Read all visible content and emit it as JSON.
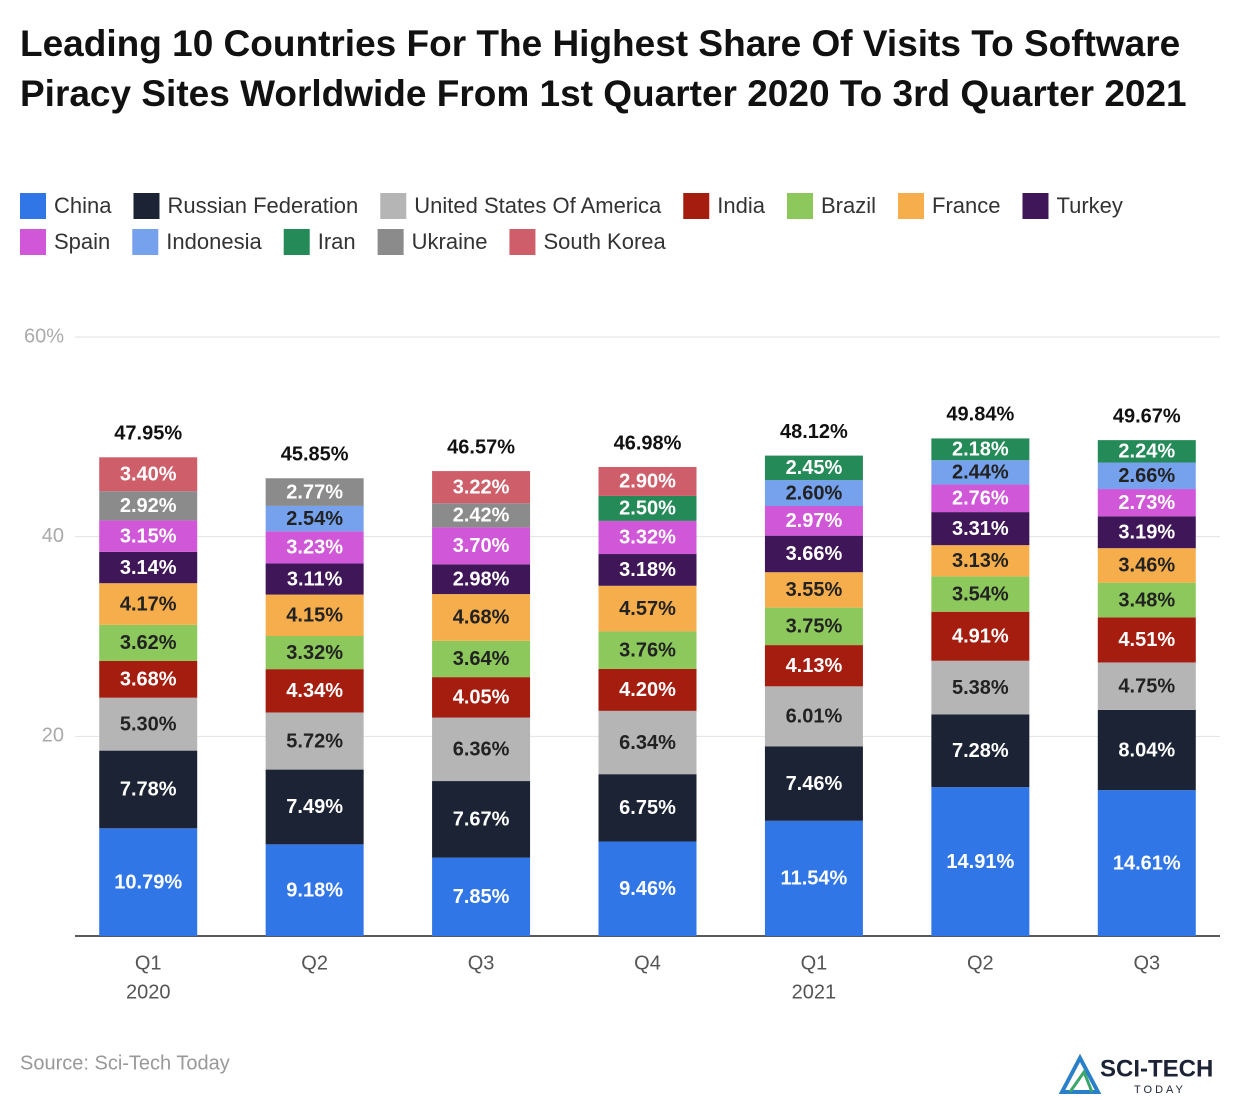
{
  "chart_data": {
    "type": "stacked_bar",
    "title": "Leading 10 Countries For The Highest Share Of Visits To Software Piracy Sites Worldwide From 1st Quarter 2020 To 3rd Quarter 2021",
    "categories": [
      [
        "Q1",
        "2020"
      ],
      [
        "Q2"
      ],
      [
        "Q3"
      ],
      [
        "Q4"
      ],
      [
        "Q1",
        "2021"
      ],
      [
        "Q2"
      ],
      [
        "Q3"
      ]
    ],
    "series": [
      {
        "name": "China",
        "color": "#3176e6",
        "values": [
          10.79,
          9.18,
          7.85,
          9.46,
          11.54,
          14.91,
          14.61
        ],
        "value_labels": [
          "10.79%",
          "9.18%",
          "7.85%",
          "9.46%",
          "11.54%",
          "14.91%",
          "14.61%"
        ]
      },
      {
        "name": "Russian Federation",
        "color": "#1b2335",
        "values": [
          7.78,
          7.49,
          7.67,
          6.75,
          7.46,
          7.28,
          8.04
        ],
        "value_labels": [
          "7.78%",
          "7.49%",
          "7.67%",
          "6.75%",
          "7.46%",
          "7.28%",
          "8.04%"
        ]
      },
      {
        "name": "United States Of America",
        "color": "#b5b5b5",
        "values": [
          5.3,
          5.72,
          6.36,
          6.34,
          6.01,
          5.38,
          4.75
        ],
        "value_labels": [
          "5.30%",
          "5.72%",
          "6.36%",
          "6.34%",
          "6.01%",
          "5.38%",
          "4.75%"
        ]
      },
      {
        "name": "India",
        "color": "#a51d0e",
        "values": [
          3.68,
          4.34,
          4.05,
          4.2,
          4.13,
          4.91,
          4.51
        ],
        "value_labels": [
          "3.68%",
          "4.34%",
          "4.05%",
          "4.20%",
          "4.13%",
          "4.91%",
          "4.51%"
        ]
      },
      {
        "name": "Brazil",
        "color": "#8cc85b",
        "values": [
          3.62,
          3.32,
          3.64,
          3.76,
          3.75,
          3.54,
          3.48
        ],
        "value_labels": [
          "3.62%",
          "3.32%",
          "3.64%",
          "3.76%",
          "3.75%",
          "3.54%",
          "3.48%"
        ]
      },
      {
        "name": "France",
        "color": "#f6ad4b",
        "values": [
          4.17,
          4.15,
          4.68,
          4.57,
          3.55,
          3.13,
          3.46
        ],
        "value_labels": [
          "4.17%",
          "4.15%",
          "4.68%",
          "4.57%",
          "3.55%",
          "3.13%",
          "3.46%"
        ]
      },
      {
        "name": "Turkey",
        "color": "#3f1657",
        "values": [
          3.14,
          3.11,
          2.98,
          3.18,
          3.66,
          3.31,
          3.19
        ],
        "value_labels": [
          "3.14%",
          "3.11%",
          "2.98%",
          "3.18%",
          "3.66%",
          "3.31%",
          "3.19%"
        ]
      },
      {
        "name": "Spain",
        "color": "#d057d8",
        "values": [
          3.15,
          3.23,
          3.7,
          3.32,
          2.97,
          2.76,
          2.73
        ],
        "value_labels": [
          "3.15%",
          "3.23%",
          "3.70%",
          "3.32%",
          "2.97%",
          "2.76%",
          "2.73%"
        ]
      },
      {
        "name": "Indonesia",
        "color": "#76a1ec",
        "values": [
          null,
          2.54,
          null,
          null,
          2.6,
          2.44,
          2.66
        ],
        "value_labels": [
          null,
          "2.54%",
          null,
          null,
          "2.60%",
          "2.44%",
          "2.66%"
        ]
      },
      {
        "name": "Iran",
        "color": "#248a57",
        "values": [
          null,
          null,
          null,
          2.5,
          2.45,
          2.18,
          2.24
        ],
        "value_labels": [
          null,
          null,
          null,
          "2.50%",
          "2.45%",
          "2.18%",
          "2.24%"
        ]
      },
      {
        "name": "Ukraine",
        "color": "#8b8b8b",
        "values": [
          2.92,
          2.77,
          2.42,
          null,
          null,
          null,
          null
        ],
        "value_labels": [
          "2.92%",
          "2.77%",
          "2.42%",
          null,
          null,
          null,
          null
        ]
      },
      {
        "name": "South Korea",
        "color": "#ce5f6a",
        "values": [
          3.4,
          null,
          3.22,
          2.9,
          null,
          null,
          null
        ],
        "value_labels": [
          "3.40%",
          null,
          "3.22%",
          "2.90%",
          null,
          null,
          null
        ]
      }
    ],
    "totals": [
      47.95,
      45.85,
      46.57,
      46.98,
      48.12,
      49.84,
      49.67
    ],
    "total_labels": [
      "47.95%",
      "45.85%",
      "46.57%",
      "46.98%",
      "48.12%",
      "49.84%",
      "49.67%"
    ],
    "ylim": [
      0,
      60
    ],
    "yticks": [
      20,
      40,
      {
        "value": 60,
        "label": "60%"
      }
    ],
    "grid": true,
    "source": "Source: Sci-Tech Today",
    "logo_text": [
      "SCI-TECH",
      "TODAY"
    ]
  }
}
